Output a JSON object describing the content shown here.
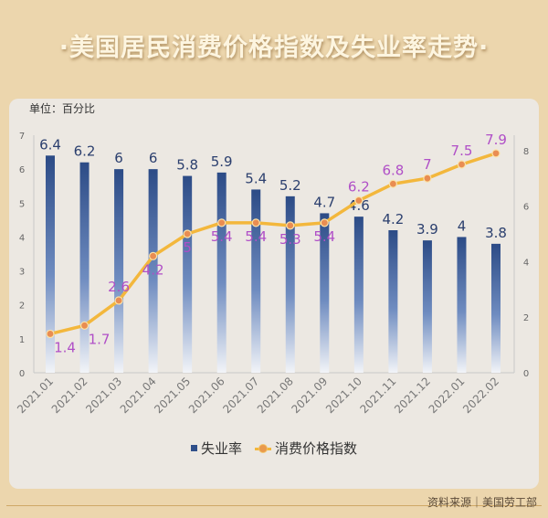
{
  "title": "·美国居民消费价格指数及失业率走势·",
  "unit_label": "单位：百分比",
  "source": "资料来源｜美国劳工部",
  "chart_data": {
    "type": "bar+line",
    "categories": [
      "2021.01",
      "2021.02",
      "2021.03",
      "2021.04",
      "2021.05",
      "2021.06",
      "2021.07",
      "2021.08",
      "2021.09",
      "2021.10",
      "2021.11",
      "2021.12",
      "2022.01",
      "2022.02"
    ],
    "series": [
      {
        "name": "失业率",
        "type": "bar",
        "axis": "left",
        "color": "#2f4f8a",
        "values": [
          6.4,
          6.2,
          6,
          6,
          5.8,
          5.9,
          5.4,
          5.2,
          4.7,
          4.6,
          4.2,
          3.9,
          4,
          3.8
        ]
      },
      {
        "name": "消费价格指数",
        "type": "line",
        "axis": "right",
        "color": "#f3b73c",
        "label_color": "#b04fc7",
        "values": [
          1.4,
          1.7,
          2.6,
          4.2,
          5,
          5.4,
          5.4,
          5.3,
          5.4,
          6.2,
          6.8,
          7,
          7.5,
          7.9
        ]
      }
    ],
    "left_axis": {
      "range": [
        0,
        7
      ],
      "ticks": [
        0,
        1,
        2,
        3,
        4,
        5,
        6,
        7
      ]
    },
    "right_axis": {
      "range": [
        0,
        8
      ],
      "ticks": [
        0,
        2,
        4,
        6,
        8
      ]
    },
    "legend": "bottom"
  }
}
